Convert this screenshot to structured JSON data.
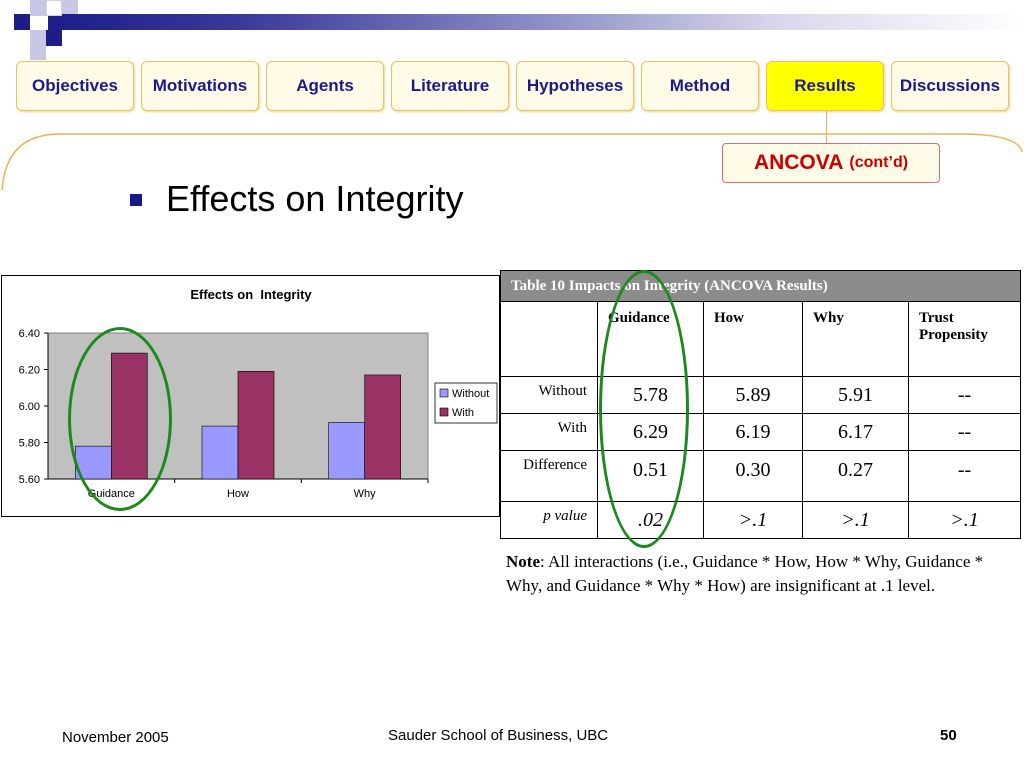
{
  "nav": {
    "tabs": [
      {
        "label": "Objectives",
        "active": false
      },
      {
        "label": "Motivations",
        "active": false
      },
      {
        "label": "Agents",
        "active": false
      },
      {
        "label": "Literature",
        "active": false
      },
      {
        "label": "Hypotheses",
        "active": false
      },
      {
        "label": "Method",
        "active": false
      },
      {
        "label": "Results",
        "active": true
      },
      {
        "label": "Discussions",
        "active": false
      }
    ],
    "active_color": "#ffff00",
    "text_color": "#1a1a8c"
  },
  "section_badge": {
    "main": "ANCOVA",
    "sub": "(cont’d)",
    "color": "#cc0000"
  },
  "heading": "Effects on Integrity",
  "chart_data": {
    "type": "bar",
    "title": "Effects on  Integrity",
    "categories": [
      "Guidance",
      "How",
      "Why"
    ],
    "series": [
      {
        "name": "Without",
        "values": [
          5.78,
          5.89,
          5.91
        ],
        "color": "#9999ff"
      },
      {
        "name": "With",
        "values": [
          6.29,
          6.19,
          6.17
        ],
        "color": "#993366"
      }
    ],
    "ylim": [
      5.6,
      6.4
    ],
    "yticks": [
      "5.60",
      "5.80",
      "6.00",
      "6.20",
      "6.40"
    ],
    "xlabel": "",
    "ylabel": "",
    "legend_position": "right",
    "grid": false,
    "plot_background": "#c0c0c0"
  },
  "table": {
    "caption": "Table 10 Impacts on Integrity (ANCOVA Results)",
    "columns": [
      "Guidance",
      "How",
      "Why",
      "Trust Propensity"
    ],
    "rows": [
      {
        "label": "Without",
        "values": [
          "5.78",
          "5.89",
          "5.91",
          "--"
        ]
      },
      {
        "label": "With",
        "values": [
          "6.29",
          "6.19",
          "6.17",
          "--"
        ]
      },
      {
        "label": "Difference",
        "values": [
          "0.51",
          "0.30",
          "0.27",
          "--"
        ]
      },
      {
        "label": "p value",
        "values": [
          ".02",
          ">.1",
          ">.1",
          ">.1"
        ]
      }
    ]
  },
  "note": {
    "label": "Note",
    "text": ": All interactions (i.e., Guidance * How, How * Why, Guidance * Why, and Guidance * Why * How) are insignificant at .1 level."
  },
  "footer": {
    "date": "November 2005",
    "org": "Sauder School of Business, UBC",
    "page": "50"
  }
}
